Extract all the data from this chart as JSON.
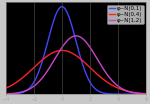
{
  "background_color": "#c8c8c8",
  "plot_bg_color": "#000000",
  "curves": [
    {
      "mu": 0,
      "sigma": 1,
      "color": "#4444ff",
      "label": "φ~N(0,1)"
    },
    {
      "mu": 0,
      "sigma": 2,
      "color": "#ff2222",
      "label": "φ~N(0,4)"
    },
    {
      "mu": 1,
      "sigma": 1.5,
      "color": "#cc44cc",
      "label": "φ~N(1,2)"
    }
  ],
  "xlim": [
    -4,
    6
  ],
  "ylim": [
    0,
    0.42
  ],
  "legend_fontsize": 4.0,
  "linewidth": 1.0,
  "grid_color": "#555555",
  "grid_linewidth": 0.4,
  "xticks": [
    -4,
    -2,
    0,
    2,
    4,
    6
  ],
  "yticks": []
}
